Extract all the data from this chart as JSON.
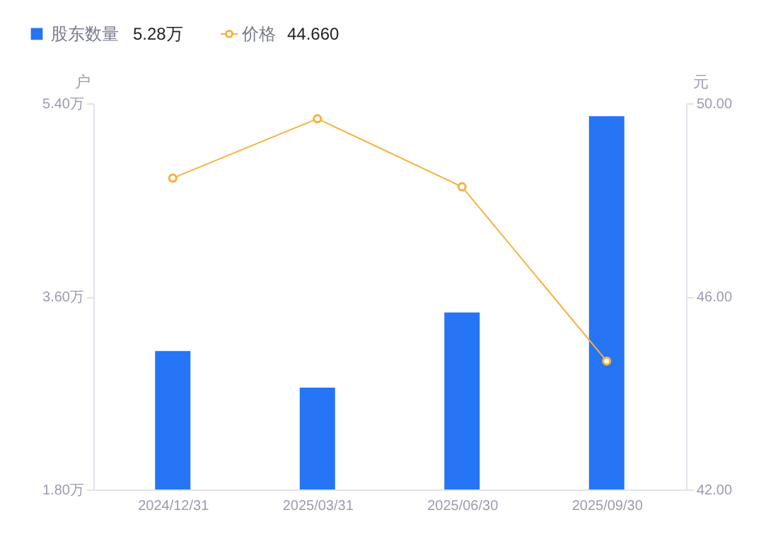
{
  "chart_data": {
    "type": "bar",
    "categories": [
      "2024/12/31",
      "2025/03/31",
      "2025/06/30",
      "2025/09/30"
    ],
    "series": [
      {
        "name": "股东数量",
        "color": "#2575f4",
        "values": [
          3.09,
          2.75,
          3.45,
          5.28
        ]
      },
      {
        "name": "价格",
        "type": "line",
        "axis": "y2",
        "color": "#f5b13d",
        "marker": "circle",
        "values": [
          48.45,
          49.68,
          48.27,
          44.66
        ]
      }
    ],
    "ylabel": "户",
    "y2label": "元",
    "ylim": [
      1.8,
      5.4
    ],
    "yticks": [
      {
        "value": 1.8,
        "label": "1.80万"
      },
      {
        "value": 3.6,
        "label": "3.60万"
      },
      {
        "value": 5.4,
        "label": "5.40万"
      }
    ],
    "y2lim": [
      42,
      50
    ],
    "y2ticks": [
      {
        "value": 42,
        "label": "42.00"
      },
      {
        "value": 46,
        "label": "46.00"
      },
      {
        "value": 50,
        "label": "50.00"
      }
    ],
    "annotations": [
      "5.28万",
      "44.660"
    ],
    "legend": "top left",
    "grid": false
  }
}
